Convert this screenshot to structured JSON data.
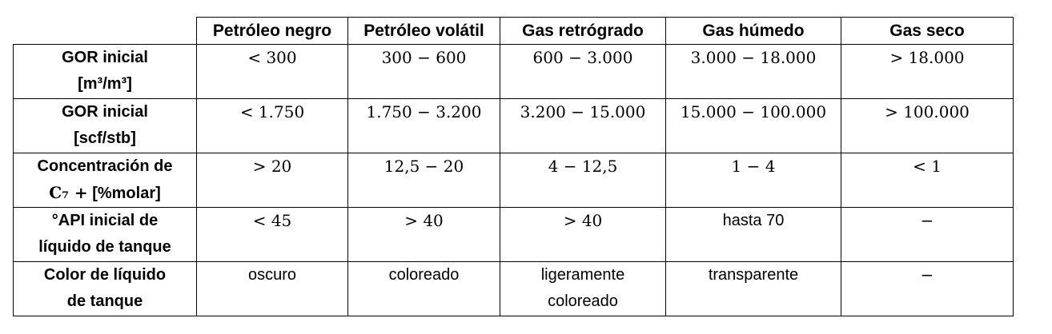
{
  "table": {
    "columns": [
      "Petróleo negro",
      "Petróleo volátil",
      "Gas retrógrado",
      "Gas húmedo",
      "Gas seco"
    ],
    "rows": [
      {
        "label_line1": "GOR inicial",
        "label_line2": "[m³/m³]",
        "cells": [
          "< 300",
          "300 − 600",
          "600 − 3.000",
          "3.000 − 18.000",
          "> 18.000"
        ]
      },
      {
        "label_line1": "GOR inicial",
        "label_line2": "[scf/stb]",
        "cells": [
          "< 1.750",
          "1.750 − 3.200",
          "3.200 − 15.000",
          "15.000 − 100.000",
          "> 100.000"
        ]
      },
      {
        "label_line1": "Concentración de",
        "label_line2_math": "C₇ +",
        "label_line2_text": " [%molar]",
        "cells": [
          "> 20",
          "12,5 − 20",
          "4 − 12,5",
          "1 − 4",
          "< 1"
        ]
      },
      {
        "label_line1": "°API inicial de",
        "label_line2": "líquido de tanque",
        "cells": [
          "< 45",
          "> 40",
          "> 40",
          "hasta 70",
          "−"
        ]
      },
      {
        "label_line1": "Color de líquido",
        "label_line2": "de tanque",
        "cells": [
          "oscuro",
          "coloreado",
          "ligeramente coloreado",
          "transparente",
          "−"
        ]
      }
    ]
  }
}
